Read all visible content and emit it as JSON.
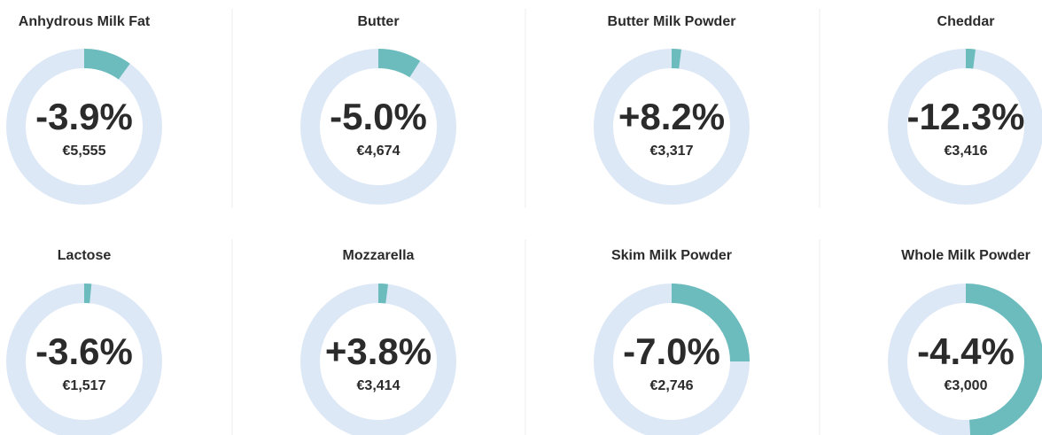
{
  "items": [
    {
      "name": "Anhydrous Milk Fat",
      "change": "-3.9%",
      "price": "€5,555",
      "share": 10
    },
    {
      "name": "Butter",
      "change": "-5.0%",
      "price": "€4,674",
      "share": 9
    },
    {
      "name": "Butter Milk Powder",
      "change": "+8.2%",
      "price": "€3,317",
      "share": 2
    },
    {
      "name": "Cheddar",
      "change": "-12.3%",
      "price": "€3,416",
      "share": 2
    },
    {
      "name": "Lactose",
      "change": "-3.6%",
      "price": "€1,517",
      "share": 1.5
    },
    {
      "name": "Mozzarella",
      "change": "+3.8%",
      "price": "€3,414",
      "share": 2
    },
    {
      "name": "Skim Milk Powder",
      "change": "-7.0%",
      "price": "€2,746",
      "share": 25
    },
    {
      "name": "Whole Milk Powder",
      "change": "-4.4%",
      "price": "€3,000",
      "share": 49
    }
  ]
}
